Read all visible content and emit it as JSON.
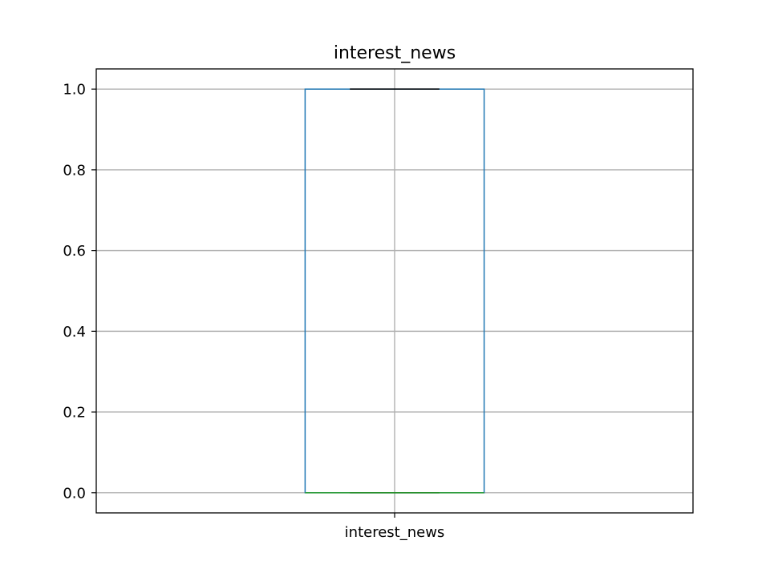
{
  "chart_data": {
    "type": "box",
    "title": "interest_news",
    "xlabel": "",
    "ylabel": "",
    "categories": [
      "interest_news"
    ],
    "boxes": [
      {
        "label": "interest_news",
        "whisker_low": 0.0,
        "q1": 0.0,
        "median": 0.0,
        "q3": 1.0,
        "whisker_high": 1.0,
        "outliers": []
      }
    ],
    "ylim": [
      -0.05,
      1.05
    ],
    "yticks": [
      0.0,
      0.2,
      0.4,
      0.6,
      0.8,
      1.0
    ],
    "ytick_labels": [
      "0.0",
      "0.2",
      "0.4",
      "0.6",
      "0.8",
      "1.0"
    ],
    "grid": true,
    "legend": "none",
    "colors": {
      "box": "#1f77b4",
      "median": "#2ca02c",
      "whisker": "#000000",
      "cap": "#000000",
      "grid": "#b0b0b0",
      "axes": "#000000"
    }
  }
}
